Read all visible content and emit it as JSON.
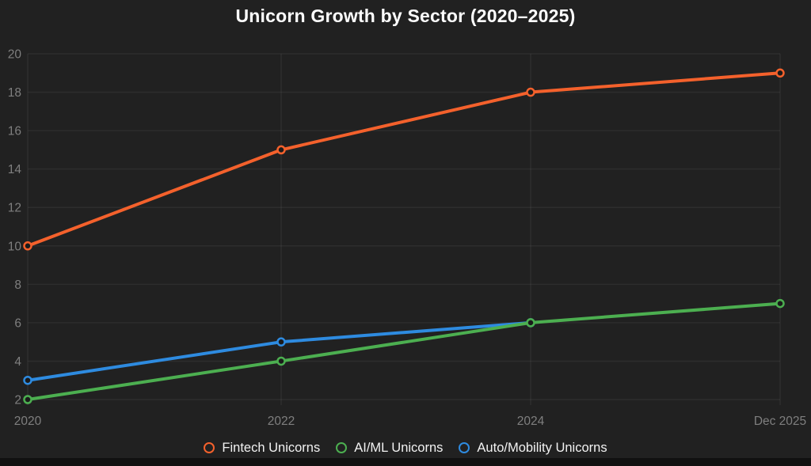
{
  "page": {
    "background": "#212121",
    "footer_strip_color": "#111111"
  },
  "chart_data": {
    "type": "line",
    "title": "Unicorn Growth by Sector (2020–2025)",
    "x_categories": [
      "2020",
      "2022",
      "2024",
      "Dec 2025"
    ],
    "y_ticks": [
      20,
      18,
      16,
      14,
      12,
      10,
      8,
      6,
      4,
      2
    ],
    "ylim": [
      2,
      20
    ],
    "grid": true,
    "legend_position": "bottom",
    "marker_style": "open-circle",
    "title_color": "#ffffff",
    "tick_color": "#7f7f7f",
    "grid_color": "rgba(255,255,255,0.055)",
    "series": [
      {
        "name": "Fintech Unicorns",
        "color": "#f4612c",
        "x": [
          "2020",
          "2022",
          "2024",
          "Dec 2025"
        ],
        "values": [
          10,
          15,
          18,
          19
        ]
      },
      {
        "name": "AI/ML Unicorns",
        "color": "#4caf50",
        "x": [
          "2020",
          "2022",
          "2024",
          "Dec 2025"
        ],
        "values": [
          2,
          4,
          6,
          7
        ]
      },
      {
        "name": "Auto/Mobility Unicorns",
        "color": "#2e8be0",
        "x": [
          "2020",
          "2022",
          "2024"
        ],
        "values": [
          3,
          5,
          6
        ]
      }
    ]
  }
}
